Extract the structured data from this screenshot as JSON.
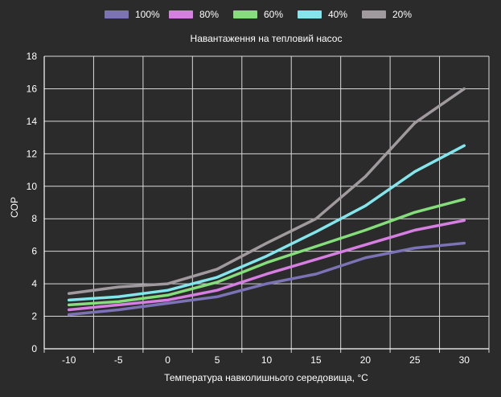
{
  "chart_data": {
    "type": "line",
    "title": "Навантаження на тепловий насос",
    "xlabel": "Температура навколишнього середовища, °C",
    "ylabel": "COP",
    "categories": [
      "-10",
      "-5",
      "0",
      "5",
      "10",
      "15",
      "20",
      "25",
      "30"
    ],
    "x": [
      -10,
      -5,
      0,
      5,
      10,
      15,
      20,
      25,
      30
    ],
    "ylim": [
      0,
      18
    ],
    "yticks": [
      "0",
      "2",
      "4",
      "6",
      "8",
      "10",
      "12",
      "14",
      "16",
      "18"
    ],
    "grid": true,
    "legend_position": "top",
    "series": [
      {
        "name": "100%",
        "color": "#7b73b6",
        "values": [
          2.1,
          2.4,
          2.8,
          3.2,
          4.0,
          4.6,
          5.6,
          6.2,
          6.5
        ]
      },
      {
        "name": "80%",
        "color": "#d77ee3",
        "values": [
          2.4,
          2.7,
          3.0,
          3.6,
          4.6,
          5.5,
          6.4,
          7.3,
          7.9
        ]
      },
      {
        "name": "60%",
        "color": "#84de7a",
        "values": [
          2.7,
          2.9,
          3.3,
          4.1,
          5.3,
          6.3,
          7.3,
          8.4,
          9.2
        ]
      },
      {
        "name": "40%",
        "color": "#83e6ec",
        "values": [
          3.0,
          3.2,
          3.6,
          4.4,
          5.7,
          7.2,
          8.8,
          10.9,
          12.5
        ]
      },
      {
        "name": "20%",
        "color": "#a09a9f",
        "values": [
          3.4,
          3.8,
          4.0,
          4.9,
          6.5,
          8.0,
          10.6,
          13.9,
          16.0
        ]
      }
    ]
  }
}
